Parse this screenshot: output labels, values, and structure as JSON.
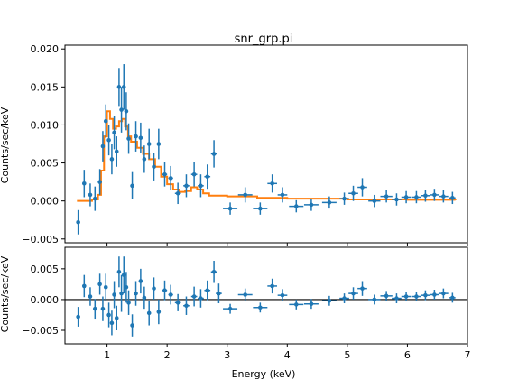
{
  "chart_data": [
    {
      "type": "scatter",
      "title": "snr_grp.pi",
      "xlabel": "",
      "ylabel": "Counts/sec/keV",
      "xlim": [
        0.3,
        7.0
      ],
      "ylim": [
        -0.0055,
        0.0205
      ],
      "yticks": [
        "0.020",
        "0.015",
        "0.010",
        "0.005",
        "0.000",
        "−0.005"
      ],
      "colors": {
        "data": "#1f77b4",
        "model": "#ff7f0e"
      },
      "series": [
        {
          "type": "errorbar",
          "points": [
            {
              "x": 0.52,
              "xerr": 0.02,
              "y": -0.0028,
              "yerr": 0.0016
            },
            {
              "x": 0.62,
              "xerr": 0.03,
              "y": 0.0023,
              "yerr": 0.0018
            },
            {
              "x": 0.72,
              "xerr": 0.03,
              "y": 0.0008,
              "yerr": 0.0015
            },
            {
              "x": 0.8,
              "xerr": 0.02,
              "y": 0.0003,
              "yerr": 0.0016
            },
            {
              "x": 0.88,
              "xerr": 0.02,
              "y": 0.0025,
              "yerr": 0.0017
            },
            {
              "x": 0.93,
              "xerr": 0.02,
              "y": 0.0072,
              "yerr": 0.002
            },
            {
              "x": 0.98,
              "xerr": 0.02,
              "y": 0.0105,
              "yerr": 0.0022
            },
            {
              "x": 1.03,
              "xerr": 0.02,
              "y": 0.008,
              "yerr": 0.002
            },
            {
              "x": 1.08,
              "xerr": 0.02,
              "y": 0.0055,
              "yerr": 0.002
            },
            {
              "x": 1.12,
              "xerr": 0.02,
              "y": 0.009,
              "yerr": 0.0022
            },
            {
              "x": 1.16,
              "xerr": 0.02,
              "y": 0.0065,
              "yerr": 0.002
            },
            {
              "x": 1.2,
              "xerr": 0.02,
              "y": 0.015,
              "yerr": 0.0025
            },
            {
              "x": 1.24,
              "xerr": 0.02,
              "y": 0.012,
              "yerr": 0.003
            },
            {
              "x": 1.28,
              "xerr": 0.02,
              "y": 0.015,
              "yerr": 0.003
            },
            {
              "x": 1.32,
              "xerr": 0.02,
              "y": 0.0118,
              "yerr": 0.0025
            },
            {
              "x": 1.36,
              "xerr": 0.02,
              "y": 0.0082,
              "yerr": 0.002
            },
            {
              "x": 1.42,
              "xerr": 0.03,
              "y": 0.002,
              "yerr": 0.0018
            },
            {
              "x": 1.48,
              "xerr": 0.03,
              "y": 0.0085,
              "yerr": 0.002
            },
            {
              "x": 1.56,
              "xerr": 0.03,
              "y": 0.0083,
              "yerr": 0.002
            },
            {
              "x": 1.62,
              "xerr": 0.03,
              "y": 0.0055,
              "yerr": 0.0018
            },
            {
              "x": 1.7,
              "xerr": 0.03,
              "y": 0.0075,
              "yerr": 0.002
            },
            {
              "x": 1.78,
              "xerr": 0.03,
              "y": 0.0045,
              "yerr": 0.0018
            },
            {
              "x": 1.86,
              "xerr": 0.03,
              "y": 0.0075,
              "yerr": 0.002
            },
            {
              "x": 1.96,
              "xerr": 0.04,
              "y": 0.0035,
              "yerr": 0.0016
            },
            {
              "x": 2.06,
              "xerr": 0.04,
              "y": 0.003,
              "yerr": 0.0016
            },
            {
              "x": 2.18,
              "xerr": 0.05,
              "y": 0.001,
              "yerr": 0.0014
            },
            {
              "x": 2.32,
              "xerr": 0.05,
              "y": 0.002,
              "yerr": 0.0015
            },
            {
              "x": 2.45,
              "xerr": 0.05,
              "y": 0.0035,
              "yerr": 0.0016
            },
            {
              "x": 2.56,
              "xerr": 0.05,
              "y": 0.002,
              "yerr": 0.0015
            },
            {
              "x": 2.67,
              "xerr": 0.05,
              "y": 0.0032,
              "yerr": 0.0016
            },
            {
              "x": 2.78,
              "xerr": 0.05,
              "y": 0.0062,
              "yerr": 0.0018
            },
            {
              "x": 3.05,
              "xerr": 0.12,
              "y": -0.001,
              "yerr": 0.0008
            },
            {
              "x": 3.3,
              "xerr": 0.12,
              "y": 0.0008,
              "yerr": 0.001
            },
            {
              "x": 3.55,
              "xerr": 0.12,
              "y": -0.001,
              "yerr": 0.0008
            },
            {
              "x": 3.75,
              "xerr": 0.08,
              "y": 0.0023,
              "yerr": 0.0012
            },
            {
              "x": 3.92,
              "xerr": 0.08,
              "y": 0.0008,
              "yerr": 0.001
            },
            {
              "x": 4.15,
              "xerr": 0.12,
              "y": -0.0007,
              "yerr": 0.0008
            },
            {
              "x": 4.4,
              "xerr": 0.12,
              "y": -0.0005,
              "yerr": 0.0008
            },
            {
              "x": 4.7,
              "xerr": 0.12,
              "y": -0.0002,
              "yerr": 0.0008
            },
            {
              "x": 4.95,
              "xerr": 0.08,
              "y": 0.0003,
              "yerr": 0.0008
            },
            {
              "x": 5.1,
              "xerr": 0.08,
              "y": 0.001,
              "yerr": 0.001
            },
            {
              "x": 5.25,
              "xerr": 0.08,
              "y": 0.0018,
              "yerr": 0.0012
            },
            {
              "x": 5.45,
              "xerr": 0.1,
              "y": 0.0,
              "yerr": 0.0008
            },
            {
              "x": 5.65,
              "xerr": 0.1,
              "y": 0.0006,
              "yerr": 0.0008
            },
            {
              "x": 5.82,
              "xerr": 0.08,
              "y": 0.0002,
              "yerr": 0.0008
            },
            {
              "x": 5.98,
              "xerr": 0.08,
              "y": 0.0005,
              "yerr": 0.0008
            },
            {
              "x": 6.15,
              "xerr": 0.08,
              "y": 0.0005,
              "yerr": 0.0008
            },
            {
              "x": 6.3,
              "xerr": 0.08,
              "y": 0.0007,
              "yerr": 0.0008
            },
            {
              "x": 6.45,
              "xerr": 0.08,
              "y": 0.0008,
              "yerr": 0.0008
            },
            {
              "x": 6.6,
              "xerr": 0.08,
              "y": 0.0006,
              "yerr": 0.0008
            },
            {
              "x": 6.75,
              "xerr": 0.05,
              "y": 0.0004,
              "yerr": 0.0008
            }
          ]
        },
        {
          "type": "step-line",
          "x": [
            0.5,
            0.75,
            0.85,
            0.9,
            0.95,
            1.0,
            1.05,
            1.1,
            1.15,
            1.2,
            1.25,
            1.3,
            1.35,
            1.4,
            1.5,
            1.6,
            1.7,
            1.8,
            1.9,
            2.0,
            2.1,
            2.2,
            2.3,
            2.4,
            2.5,
            2.6,
            2.7,
            3.0,
            3.5,
            4.0,
            5.0,
            6.0,
            6.8
          ],
          "y": [
            0.0,
            0.0002,
            0.0008,
            0.004,
            0.0085,
            0.0118,
            0.0108,
            0.0095,
            0.0098,
            0.0105,
            0.0108,
            0.0098,
            0.0085,
            0.0078,
            0.007,
            0.0062,
            0.0055,
            0.0045,
            0.0032,
            0.0022,
            0.0015,
            0.0012,
            0.0013,
            0.0018,
            0.0015,
            0.001,
            0.0007,
            0.0006,
            0.0004,
            0.0003,
            0.0002,
            0.00015,
            0.0001
          ]
        }
      ]
    },
    {
      "type": "scatter",
      "title": "",
      "xlabel": "Energy (keV)",
      "ylabel": "Counts/sec/keV",
      "xlim": [
        0.3,
        7.0
      ],
      "ylim": [
        -0.0072,
        0.0085
      ],
      "xticks": [
        "1",
        "2",
        "3",
        "4",
        "5",
        "6",
        "7"
      ],
      "yticks": [
        "0.005",
        "0.000",
        "−0.005"
      ],
      "colors": {
        "data": "#1f77b4",
        "reference": "#000000"
      },
      "series": [
        {
          "type": "errorbar",
          "points": [
            {
              "x": 0.52,
              "xerr": 0.02,
              "y": -0.0028,
              "yerr": 0.0016
            },
            {
              "x": 0.62,
              "xerr": 0.03,
              "y": 0.0022,
              "yerr": 0.0018
            },
            {
              "x": 0.72,
              "xerr": 0.03,
              "y": 0.0005,
              "yerr": 0.0015
            },
            {
              "x": 0.8,
              "xerr": 0.02,
              "y": -0.0015,
              "yerr": 0.0016
            },
            {
              "x": 0.88,
              "xerr": 0.02,
              "y": 0.0025,
              "yerr": 0.0017
            },
            {
              "x": 0.93,
              "xerr": 0.02,
              "y": -0.0015,
              "yerr": 0.002
            },
            {
              "x": 0.98,
              "xerr": 0.02,
              "y": 0.002,
              "yerr": 0.0022
            },
            {
              "x": 1.03,
              "xerr": 0.02,
              "y": -0.0025,
              "yerr": 0.002
            },
            {
              "x": 1.08,
              "xerr": 0.02,
              "y": -0.0038,
              "yerr": 0.002
            },
            {
              "x": 1.12,
              "xerr": 0.02,
              "y": 0.0008,
              "yerr": 0.0022
            },
            {
              "x": 1.16,
              "xerr": 0.02,
              "y": -0.003,
              "yerr": 0.002
            },
            {
              "x": 1.2,
              "xerr": 0.02,
              "y": 0.0045,
              "yerr": 0.0025
            },
            {
              "x": 1.24,
              "xerr": 0.02,
              "y": 0.001,
              "yerr": 0.003
            },
            {
              "x": 1.28,
              "xerr": 0.02,
              "y": 0.004,
              "yerr": 0.003
            },
            {
              "x": 1.32,
              "xerr": 0.02,
              "y": 0.002,
              "yerr": 0.0025
            },
            {
              "x": 1.36,
              "xerr": 0.02,
              "y": -0.0005,
              "yerr": 0.002
            },
            {
              "x": 1.42,
              "xerr": 0.03,
              "y": -0.0042,
              "yerr": 0.0018
            },
            {
              "x": 1.48,
              "xerr": 0.03,
              "y": 0.001,
              "yerr": 0.002
            },
            {
              "x": 1.56,
              "xerr": 0.03,
              "y": 0.003,
              "yerr": 0.002
            },
            {
              "x": 1.62,
              "xerr": 0.03,
              "y": 0.0003,
              "yerr": 0.0018
            },
            {
              "x": 1.7,
              "xerr": 0.03,
              "y": -0.0022,
              "yerr": 0.002
            },
            {
              "x": 1.78,
              "xerr": 0.03,
              "y": 0.0018,
              "yerr": 0.0018
            },
            {
              "x": 1.86,
              "xerr": 0.03,
              "y": -0.002,
              "yerr": 0.002
            },
            {
              "x": 1.96,
              "xerr": 0.04,
              "y": 0.0015,
              "yerr": 0.0016
            },
            {
              "x": 2.06,
              "xerr": 0.04,
              "y": 0.0008,
              "yerr": 0.0016
            },
            {
              "x": 2.18,
              "xerr": 0.05,
              "y": -0.0005,
              "yerr": 0.0014
            },
            {
              "x": 2.32,
              "xerr": 0.05,
              "y": -0.001,
              "yerr": 0.0015
            },
            {
              "x": 2.45,
              "xerr": 0.05,
              "y": 0.0005,
              "yerr": 0.0016
            },
            {
              "x": 2.56,
              "xerr": 0.05,
              "y": 0.0002,
              "yerr": 0.0015
            },
            {
              "x": 2.67,
              "xerr": 0.05,
              "y": 0.0015,
              "yerr": 0.0016
            },
            {
              "x": 2.78,
              "xerr": 0.05,
              "y": 0.0045,
              "yerr": 0.0018
            },
            {
              "x": 2.86,
              "xerr": 0.05,
              "y": 0.001,
              "yerr": 0.0016
            },
            {
              "x": 3.05,
              "xerr": 0.12,
              "y": -0.0015,
              "yerr": 0.0008
            },
            {
              "x": 3.3,
              "xerr": 0.12,
              "y": 0.0008,
              "yerr": 0.001
            },
            {
              "x": 3.55,
              "xerr": 0.12,
              "y": -0.0013,
              "yerr": 0.0008
            },
            {
              "x": 3.75,
              "xerr": 0.08,
              "y": 0.0022,
              "yerr": 0.0012
            },
            {
              "x": 3.92,
              "xerr": 0.08,
              "y": 0.0007,
              "yerr": 0.001
            },
            {
              "x": 4.15,
              "xerr": 0.12,
              "y": -0.0008,
              "yerr": 0.0008
            },
            {
              "x": 4.4,
              "xerr": 0.12,
              "y": -0.0007,
              "yerr": 0.0008
            },
            {
              "x": 4.7,
              "xerr": 0.12,
              "y": -0.0002,
              "yerr": 0.0008
            },
            {
              "x": 4.95,
              "xerr": 0.08,
              "y": 0.0002,
              "yerr": 0.0008
            },
            {
              "x": 5.1,
              "xerr": 0.08,
              "y": 0.001,
              "yerr": 0.001
            },
            {
              "x": 5.25,
              "xerr": 0.08,
              "y": 0.0018,
              "yerr": 0.0012
            },
            {
              "x": 5.45,
              "xerr": 0.1,
              "y": 0.0,
              "yerr": 0.0008
            },
            {
              "x": 5.65,
              "xerr": 0.1,
              "y": 0.0006,
              "yerr": 0.0008
            },
            {
              "x": 5.82,
              "xerr": 0.08,
              "y": 0.0002,
              "yerr": 0.0008
            },
            {
              "x": 5.98,
              "xerr": 0.08,
              "y": 0.0005,
              "yerr": 0.0008
            },
            {
              "x": 6.15,
              "xerr": 0.08,
              "y": 0.0005,
              "yerr": 0.0008
            },
            {
              "x": 6.3,
              "xerr": 0.08,
              "y": 0.0007,
              "yerr": 0.0008
            },
            {
              "x": 6.45,
              "xerr": 0.08,
              "y": 0.0008,
              "yerr": 0.0008
            },
            {
              "x": 6.6,
              "xerr": 0.08,
              "y": 0.001,
              "yerr": 0.0008
            },
            {
              "x": 6.75,
              "xerr": 0.05,
              "y": 0.0003,
              "yerr": 0.0008
            }
          ]
        },
        {
          "type": "reference-line",
          "y": 0.0
        }
      ]
    }
  ]
}
